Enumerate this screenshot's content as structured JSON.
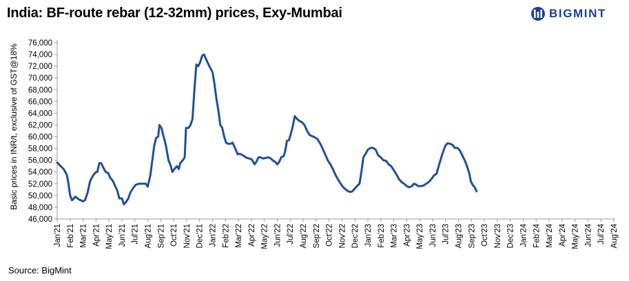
{
  "title": "India: BF-route rebar (12-32mm) prices, Exy-Mumbai",
  "logo": {
    "text": "BIGMINT",
    "color": "#1b3f93"
  },
  "source": "Source: BigMint",
  "chart_data": {
    "type": "line",
    "title": "India: BF-route rebar (12-32mm) prices, Exy-Mumbai",
    "ylabel": "Basic prices in INR/t,  exclusive of GST@18%",
    "xlabel": "",
    "ylim": [
      46000,
      76000
    ],
    "ytick_step": 2000,
    "grid": false,
    "legend": "none",
    "line_color": "#1f4e9c",
    "categories": [
      "Jan'21",
      "Feb'21",
      "Mar'21",
      "Apr'21",
      "May'21",
      "Jun'21",
      "Jul'21",
      "Aug'21",
      "Sep'21",
      "Oct'21",
      "Nov'21",
      "Dec'21",
      "Jan'22",
      "Feb'22",
      "Mar'22",
      "Apr'22",
      "May'22",
      "Jun'22",
      "Jul'22",
      "Aug'22",
      "Sep'22",
      "Oct'22",
      "Nov'22",
      "Dec'22",
      "Jan'23",
      "Feb'23",
      "Mar'23",
      "Apr'23",
      "May'23",
      "Jun'23",
      "Jul'23",
      "Aug'23",
      "Sep'23",
      "Oct'23",
      "Nov'23",
      "Dec'23",
      "Jan'24",
      "Feb'24",
      "Mar'24",
      "Apr'24",
      "May'24",
      "Jun'24",
      "Jul'24",
      "Aug'24"
    ],
    "series": [
      {
        "values": [
          [
            0.0,
            55600
          ],
          [
            0.5,
            54500
          ],
          [
            0.75,
            53500
          ],
          [
            0.85,
            52300
          ],
          [
            1.0,
            50000
          ],
          [
            1.15,
            49200
          ],
          [
            1.4,
            49800
          ],
          [
            1.7,
            49300
          ],
          [
            2.0,
            49000
          ],
          [
            2.15,
            49200
          ],
          [
            2.35,
            50500
          ],
          [
            2.55,
            52500
          ],
          [
            2.8,
            53500
          ],
          [
            3.0,
            54000
          ],
          [
            3.1,
            54000
          ],
          [
            3.25,
            55500
          ],
          [
            3.4,
            55500
          ],
          [
            3.55,
            54800
          ],
          [
            3.75,
            54000
          ],
          [
            3.95,
            53800
          ],
          [
            4.1,
            53000
          ],
          [
            4.3,
            52500
          ],
          [
            4.5,
            51500
          ],
          [
            4.65,
            50800
          ],
          [
            4.8,
            49500
          ],
          [
            5.0,
            49500
          ],
          [
            5.15,
            48500
          ],
          [
            5.35,
            49000
          ],
          [
            5.5,
            49500
          ],
          [
            5.65,
            50500
          ],
          [
            5.85,
            51200
          ],
          [
            6.05,
            51800
          ],
          [
            6.3,
            52000
          ],
          [
            6.6,
            52000
          ],
          [
            6.85,
            52000
          ],
          [
            7.0,
            51500
          ],
          [
            7.2,
            53500
          ],
          [
            7.35,
            56000
          ],
          [
            7.5,
            58500
          ],
          [
            7.65,
            59800
          ],
          [
            7.8,
            60000
          ],
          [
            7.9,
            62000
          ],
          [
            8.05,
            61500
          ],
          [
            8.2,
            60200
          ],
          [
            8.4,
            58500
          ],
          [
            8.6,
            56000
          ],
          [
            8.75,
            55200
          ],
          [
            8.9,
            54000
          ],
          [
            9.05,
            54500
          ],
          [
            9.25,
            55000
          ],
          [
            9.4,
            54500
          ],
          [
            9.5,
            55500
          ],
          [
            9.7,
            56000
          ],
          [
            9.85,
            56500
          ],
          [
            9.95,
            61500
          ],
          [
            10.15,
            61500
          ],
          [
            10.3,
            62000
          ],
          [
            10.45,
            63000
          ],
          [
            10.6,
            68000
          ],
          [
            10.75,
            72300
          ],
          [
            10.9,
            72000
          ],
          [
            11.05,
            72700
          ],
          [
            11.2,
            73800
          ],
          [
            11.35,
            74000
          ],
          [
            11.5,
            73200
          ],
          [
            11.65,
            72500
          ],
          [
            11.8,
            71800
          ],
          [
            12.0,
            71000
          ],
          [
            12.15,
            69000
          ],
          [
            12.3,
            66500
          ],
          [
            12.45,
            64500
          ],
          [
            12.6,
            62000
          ],
          [
            12.75,
            61500
          ],
          [
            12.9,
            60000
          ],
          [
            13.05,
            59000
          ],
          [
            13.2,
            58800
          ],
          [
            13.4,
            58800
          ],
          [
            13.55,
            59000
          ],
          [
            13.75,
            58000
          ],
          [
            13.95,
            57000
          ],
          [
            14.1,
            57100
          ],
          [
            14.3,
            56900
          ],
          [
            14.5,
            56600
          ],
          [
            14.65,
            56400
          ],
          [
            14.85,
            56300
          ],
          [
            15.05,
            56100
          ],
          [
            15.25,
            55300
          ],
          [
            15.4,
            55800
          ],
          [
            15.55,
            56500
          ],
          [
            15.7,
            56500
          ],
          [
            15.9,
            56300
          ],
          [
            16.1,
            56400
          ],
          [
            16.3,
            56500
          ],
          [
            16.5,
            56300
          ],
          [
            16.7,
            55900
          ],
          [
            16.85,
            55700
          ],
          [
            17.0,
            55300
          ],
          [
            17.15,
            55700
          ],
          [
            17.3,
            56500
          ],
          [
            17.5,
            56700
          ],
          [
            17.6,
            57400
          ],
          [
            17.75,
            59300
          ],
          [
            17.9,
            59400
          ],
          [
            18.05,
            60500
          ],
          [
            18.2,
            61800
          ],
          [
            18.35,
            63500
          ],
          [
            18.5,
            63100
          ],
          [
            18.7,
            62700
          ],
          [
            18.9,
            62500
          ],
          [
            19.1,
            62000
          ],
          [
            19.3,
            61000
          ],
          [
            19.5,
            60300
          ],
          [
            19.7,
            60100
          ],
          [
            19.9,
            59900
          ],
          [
            20.1,
            59600
          ],
          [
            20.3,
            58900
          ],
          [
            20.5,
            58000
          ],
          [
            20.7,
            57000
          ],
          [
            20.9,
            56000
          ],
          [
            21.1,
            55300
          ],
          [
            21.3,
            54500
          ],
          [
            21.5,
            53500
          ],
          [
            21.7,
            52700
          ],
          [
            21.9,
            52000
          ],
          [
            22.1,
            51400
          ],
          [
            22.3,
            51000
          ],
          [
            22.5,
            50700
          ],
          [
            22.65,
            50600
          ],
          [
            22.8,
            50700
          ],
          [
            23.0,
            51200
          ],
          [
            23.2,
            51700
          ],
          [
            23.35,
            52000
          ],
          [
            23.5,
            54000
          ],
          [
            23.65,
            56500
          ],
          [
            23.8,
            57000
          ],
          [
            24.0,
            57800
          ],
          [
            24.2,
            58100
          ],
          [
            24.4,
            58100
          ],
          [
            24.6,
            57800
          ],
          [
            24.8,
            56800
          ],
          [
            25.0,
            56500
          ],
          [
            25.2,
            56000
          ],
          [
            25.4,
            55900
          ],
          [
            25.6,
            55300
          ],
          [
            25.8,
            55000
          ],
          [
            26.0,
            54300
          ],
          [
            26.2,
            53600
          ],
          [
            26.4,
            52800
          ],
          [
            26.6,
            52300
          ],
          [
            26.8,
            52000
          ],
          [
            27.0,
            51600
          ],
          [
            27.2,
            51400
          ],
          [
            27.4,
            51600
          ],
          [
            27.55,
            52000
          ],
          [
            27.7,
            51900
          ],
          [
            27.9,
            51600
          ],
          [
            28.1,
            51600
          ],
          [
            28.3,
            51700
          ],
          [
            28.5,
            52000
          ],
          [
            28.7,
            52300
          ],
          [
            28.9,
            52800
          ],
          [
            29.1,
            53400
          ],
          [
            29.3,
            53700
          ],
          [
            29.5,
            55200
          ],
          [
            29.7,
            56700
          ],
          [
            29.85,
            57700
          ],
          [
            30.0,
            58500
          ],
          [
            30.15,
            58900
          ],
          [
            30.35,
            58800
          ],
          [
            30.55,
            58600
          ],
          [
            30.7,
            58100
          ],
          [
            30.9,
            58100
          ],
          [
            31.1,
            57700
          ],
          [
            31.3,
            56800
          ],
          [
            31.5,
            55900
          ],
          [
            31.7,
            54700
          ],
          [
            31.85,
            53600
          ],
          [
            31.95,
            52400
          ],
          [
            32.1,
            51800
          ],
          [
            32.25,
            51400
          ],
          [
            32.4,
            50700
          ]
        ]
      }
    ]
  }
}
